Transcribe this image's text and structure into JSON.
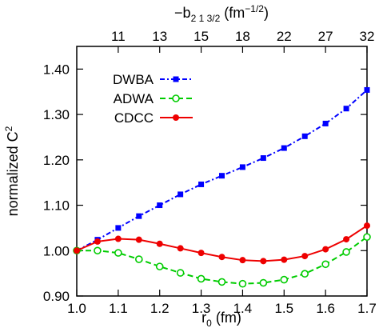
{
  "chart_data": {
    "type": "line",
    "xlabel": {
      "base": "r",
      "sub": "0",
      "rest": " (fm)"
    },
    "ylabel": {
      "base": "normalized C",
      "sup": "2"
    },
    "x2label": {
      "pre": "−b",
      "sub": "2 1 3/2",
      "mid": " (fm",
      "sup": "−1/2",
      "post": ")"
    },
    "xlim": [
      1.0,
      1.7
    ],
    "ylim": [
      0.9,
      1.45
    ],
    "xticks": [
      1.0,
      1.1,
      1.2,
      1.3,
      1.4,
      1.5,
      1.6,
      1.7
    ],
    "xtick_labels": [
      "1.0",
      "1.1",
      "1.2",
      "1.3",
      "1.4",
      "1.5",
      "1.6",
      "1.7"
    ],
    "yticks": [
      0.9,
      1.0,
      1.1,
      1.2,
      1.3,
      1.4
    ],
    "ytick_labels": [
      "0.90",
      "1.00",
      "1.10",
      "1.20",
      "1.30",
      "1.40"
    ],
    "x2ticks": [
      {
        "label": "11",
        "x": 1.1
      },
      {
        "label": "13",
        "x": 1.2
      },
      {
        "label": "15",
        "x": 1.3
      },
      {
        "label": "18",
        "x": 1.4
      },
      {
        "label": "22",
        "x": 1.5
      },
      {
        "label": "27",
        "x": 1.6
      },
      {
        "label": "32",
        "x": 1.7
      }
    ],
    "x": [
      1.0,
      1.05,
      1.1,
      1.15,
      1.2,
      1.25,
      1.3,
      1.35,
      1.4,
      1.45,
      1.5,
      1.55,
      1.6,
      1.65,
      1.7
    ],
    "series": [
      {
        "name": "DWBA",
        "color": "#0000ff",
        "marker": "square-filled",
        "dash": "dashdot",
        "values": [
          1.0,
          1.024,
          1.05,
          1.076,
          1.1,
          1.124,
          1.146,
          1.165,
          1.184,
          1.204,
          1.226,
          1.252,
          1.28,
          1.313,
          1.354
        ]
      },
      {
        "name": "ADWA",
        "color": "#00cc00",
        "marker": "circle-open",
        "dash": "dashed",
        "values": [
          1.0,
          1.0,
          0.995,
          0.981,
          0.965,
          0.951,
          0.938,
          0.931,
          0.927,
          0.929,
          0.936,
          0.949,
          0.97,
          0.997,
          1.03
        ]
      },
      {
        "name": "CDCC",
        "color": "#ee0000",
        "marker": "circle-filled",
        "dash": "solid",
        "values": [
          1.0,
          1.02,
          1.026,
          1.024,
          1.015,
          1.005,
          0.995,
          0.986,
          0.979,
          0.977,
          0.98,
          0.988,
          1.003,
          1.025,
          1.055
        ]
      }
    ],
    "legend_position": "top-left",
    "grid": false
  }
}
